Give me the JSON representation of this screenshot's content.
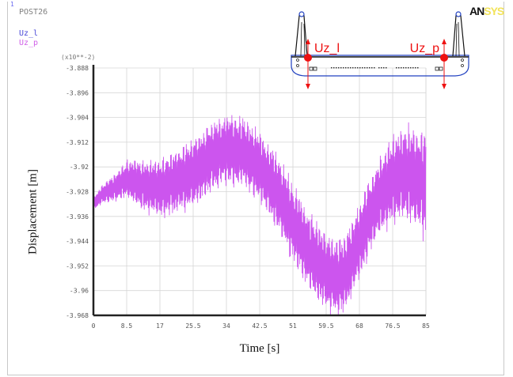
{
  "window_number": "1",
  "program_label": "POST26",
  "logo": {
    "part1": "AN",
    "part2": "SYS"
  },
  "legend": [
    {
      "label": "Uz_l",
      "color": "#4b4bd8"
    },
    {
      "label": "Uz_p",
      "color": "#d060e8"
    }
  ],
  "inset": {
    "label_left": "Uz_l",
    "label_right": "Uz_p",
    "marker_color": "#ee1111",
    "outline_color": "#2040c0"
  },
  "chart_data": {
    "type": "line",
    "xlabel": "Time [s]",
    "ylabel": "Displacement [m]",
    "y_multiplier_label": "(x10**-2)",
    "xlim": [
      0,
      85
    ],
    "ylim": [
      -3.968,
      -3.888
    ],
    "x_ticks": [
      "0",
      "8.5",
      "17",
      "25.5",
      "34",
      "42.5",
      "51",
      "59.5",
      "68",
      "76.5",
      "85"
    ],
    "y_ticks": [
      "-3.888",
      "-3.896",
      "-3.904",
      "-3.912",
      "-3.92",
      "-3.928",
      "-3.936",
      "-3.944",
      "-3.952",
      "-3.96",
      "-3.968"
    ],
    "grid": true,
    "series": [
      {
        "name": "Uz_p",
        "color": "#cc55ee",
        "envelope_time": [
          0,
          2,
          5,
          8.5,
          13,
          17,
          21,
          25.5,
          30,
          34,
          38,
          42.5,
          47,
          51,
          55,
          59.5,
          62,
          64,
          66,
          68,
          71,
          73,
          76.5,
          80,
          83,
          85
        ],
        "envelope_mean": [
          -3.932,
          -3.929,
          -3.927,
          -3.924,
          -3.926,
          -3.927,
          -3.925,
          -3.922,
          -3.917,
          -3.914,
          -3.915,
          -3.92,
          -3.928,
          -3.938,
          -3.947,
          -3.954,
          -3.956,
          -3.955,
          -3.95,
          -3.944,
          -3.935,
          -3.93,
          -3.924,
          -3.922,
          -3.924,
          -3.926
        ],
        "envelope_amplitude": [
          0.002,
          0.003,
          0.004,
          0.006,
          0.008,
          0.009,
          0.01,
          0.011,
          0.011,
          0.011,
          0.011,
          0.011,
          0.012,
          0.012,
          0.012,
          0.012,
          0.012,
          0.012,
          0.012,
          0.012,
          0.012,
          0.012,
          0.014,
          0.015,
          0.016,
          0.017
        ]
      }
    ]
  }
}
